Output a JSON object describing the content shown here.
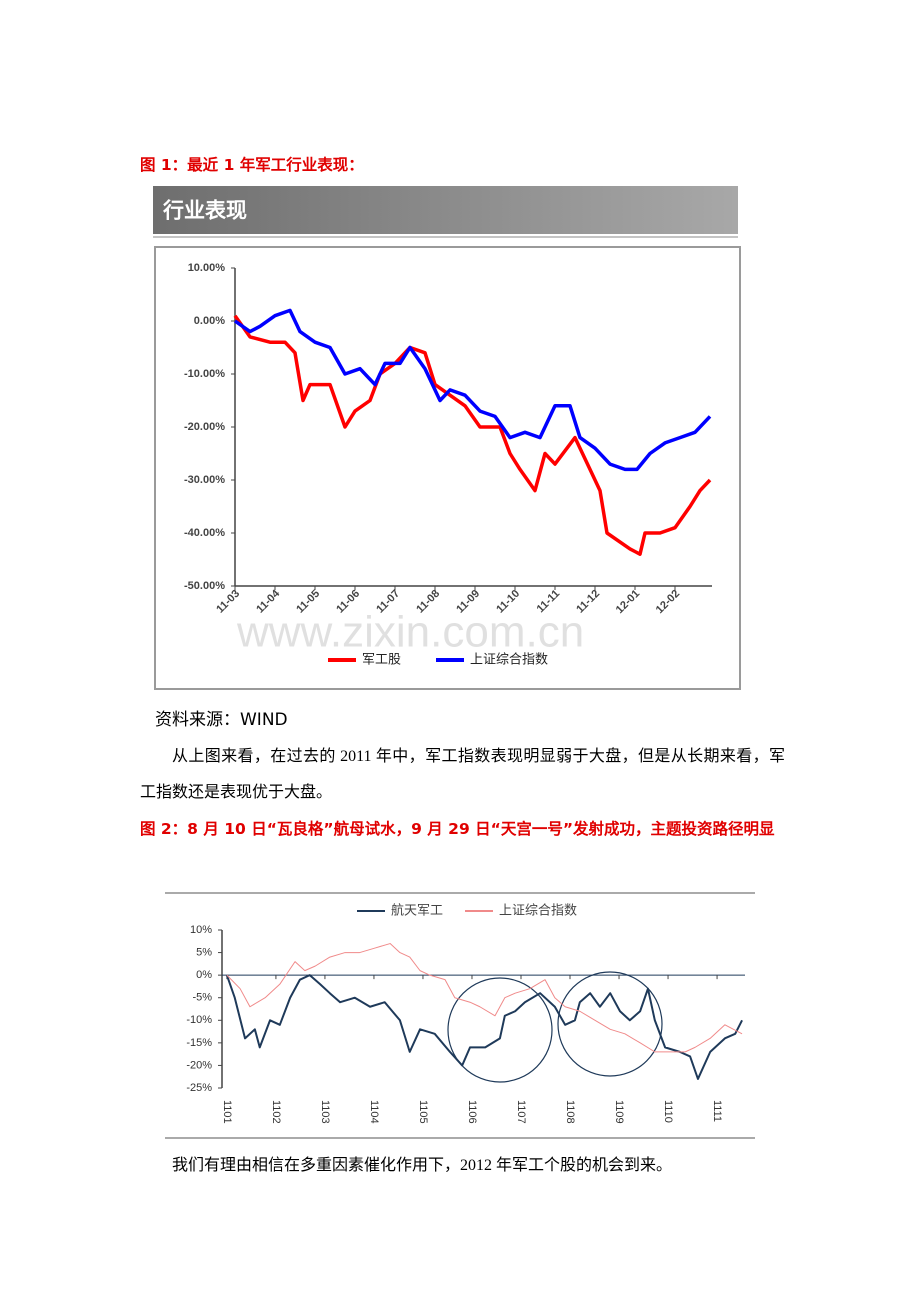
{
  "figure1_caption": "图 1：最近 1 年军工行业表现：",
  "source": "资料来源：WIND",
  "paragraph1": "从上图来看，在过去的 2011 年中，军工指数表现明显弱于大盘，但是从长期来看，军工指数还是表现优于大盘。",
  "figure2_caption": "图 2：8 月 10 日“瓦良格”航母试水，9 月 29 日“天宫一号”发射成功，主题投资路径明显",
  "paragraph2": "我们有理由相信在多重因素催化作用下，2012 年军工个股的机会到来。",
  "watermark": "www.zixin.com.cn",
  "chart_data": [
    {
      "type": "line",
      "title": "行业表现",
      "xlim": [
        0,
        12
      ],
      "xticks": [
        {
          "value": 0,
          "label": "11-03"
        },
        {
          "value": 1,
          "label": "11-04"
        },
        {
          "value": 2,
          "label": "11-05"
        },
        {
          "value": 3,
          "label": "11-06"
        },
        {
          "value": 4,
          "label": "11-07"
        },
        {
          "value": 5,
          "label": "11-08"
        },
        {
          "value": 6,
          "label": "11-09"
        },
        {
          "value": 7,
          "label": "11-10"
        },
        {
          "value": 8,
          "label": "11-11"
        },
        {
          "value": 9,
          "label": "11-12"
        },
        {
          "value": 10,
          "label": "12-01"
        },
        {
          "value": 11,
          "label": "12-02"
        }
      ],
      "ylim": [
        -50,
        10
      ],
      "yticks": [
        {
          "value": 10,
          "label": "10.00%"
        },
        {
          "value": 0,
          "label": "0.00%"
        },
        {
          "value": -10,
          "label": "-10.00%"
        },
        {
          "value": -20,
          "label": "-20.00%"
        },
        {
          "value": -30,
          "label": "-30.00%"
        },
        {
          "value": -40,
          "label": "-40.00%"
        },
        {
          "value": -50,
          "label": "-50.00%"
        }
      ],
      "series": [
        {
          "name": "军工股",
          "color": "#ff0000",
          "x": [
            0,
            0.375,
            0.875,
            1.25,
            1.5,
            1.7,
            1.875,
            2.375,
            2.75,
            3,
            3.375,
            3.625,
            4,
            4.375,
            4.75,
            5,
            5.375,
            5.75,
            6.125,
            6.625,
            6.875,
            7.125,
            7.5,
            7.75,
            8,
            8.5,
            8.875,
            9.125,
            9.3,
            9.875,
            10.125,
            10.25,
            10.625,
            11,
            11.375,
            11.625,
            11.875
          ],
          "values": [
            1,
            -3,
            -4,
            -4,
            -6,
            -15,
            -12,
            -12,
            -20,
            -17,
            -15,
            -10,
            -8,
            -5,
            -6,
            -12,
            -14,
            -16,
            -20,
            -20,
            -25,
            -28,
            -32,
            -25,
            -27,
            -22,
            -28,
            -32,
            -40,
            -43,
            -44,
            -40,
            -40,
            -39,
            -35,
            -32,
            -30
          ]
        },
        {
          "name": "上证综合指数",
          "color": "#0000ff",
          "x": [
            0,
            0.375,
            0.625,
            1,
            1.375,
            1.625,
            2,
            2.375,
            2.75,
            3.125,
            3.5,
            3.75,
            4.125,
            4.375,
            4.75,
            5.125,
            5.375,
            5.75,
            6.125,
            6.5,
            6.875,
            7.25,
            7.625,
            8,
            8.375,
            8.625,
            9,
            9.375,
            9.75,
            10.05,
            10.375,
            10.75,
            11.125,
            11.5,
            11.875
          ],
          "values": [
            0,
            -2,
            -1,
            1,
            2,
            -2,
            -4,
            -5,
            -10,
            -9,
            -12,
            -8,
            -8,
            -5,
            -9,
            -15,
            -13,
            -14,
            -17,
            -18,
            -22,
            -21,
            -22,
            -16,
            -16,
            -22,
            -24,
            -27,
            -28,
            -28,
            -25,
            -23,
            -22,
            -21,
            -18
          ]
        }
      ]
    },
    {
      "type": "line",
      "xlim": [
        -0.1,
        10.57
      ],
      "xticks": [
        {
          "value": 0,
          "label": "1101"
        },
        {
          "value": 1,
          "label": "1102"
        },
        {
          "value": 2,
          "label": "1103"
        },
        {
          "value": 3,
          "label": "1104"
        },
        {
          "value": 4,
          "label": "1105"
        },
        {
          "value": 5,
          "label": "1106"
        },
        {
          "value": 6,
          "label": "1107"
        },
        {
          "value": 7,
          "label": "1108"
        },
        {
          "value": 8,
          "label": "1109"
        },
        {
          "value": 9,
          "label": "1110"
        },
        {
          "value": 10,
          "label": "1111"
        }
      ],
      "ylim": [
        -25,
        10
      ],
      "yticks": [
        {
          "value": 10,
          "label": "10%"
        },
        {
          "value": 5,
          "label": "5%"
        },
        {
          "value": 0,
          "label": "0%"
        },
        {
          "value": -5,
          "label": "-5%"
        },
        {
          "value": -10,
          "label": "-10%"
        },
        {
          "value": -15,
          "label": "-15%"
        },
        {
          "value": -20,
          "label": "-20%"
        },
        {
          "value": -25,
          "label": "-25%"
        }
      ],
      "series": [
        {
          "name": "航天军工",
          "color": "#1f3a5a",
          "x": [
            0,
            0.16,
            0.37,
            0.57,
            0.67,
            0.88,
            1.08,
            1.29,
            1.49,
            1.69,
            1.9,
            2.1,
            2.31,
            2.61,
            2.92,
            3.22,
            3.53,
            3.73,
            3.94,
            4.24,
            4.55,
            4.8,
            4.96,
            5.27,
            5.57,
            5.67,
            5.88,
            6.08,
            6.39,
            6.69,
            6.9,
            7.1,
            7.2,
            7.41,
            7.61,
            7.82,
            8.02,
            8.22,
            8.43,
            8.59,
            8.73,
            8.94,
            9.24,
            9.45,
            9.61,
            9.86,
            10.16,
            10.37,
            10.51
          ],
          "values": [
            0,
            -5,
            -14,
            -12,
            -16,
            -10,
            -11,
            -5,
            -1,
            0,
            -2,
            -4,
            -6,
            -5,
            -7,
            -6,
            -10,
            -17,
            -12,
            -13,
            -17,
            -20,
            -16,
            -16,
            -14,
            -9,
            -8,
            -6,
            -4,
            -7,
            -11,
            -10,
            -6,
            -4,
            -7,
            -4,
            -8,
            -10,
            -8,
            -3,
            -10,
            -16,
            -17,
            -18,
            -23,
            -17,
            -14,
            -13,
            -10
          ]
        },
        {
          "name": "上证综合指数",
          "color": "#f08a8a",
          "x": [
            0,
            0.27,
            0.47,
            0.78,
            1.08,
            1.39,
            1.59,
            1.8,
            2.1,
            2.41,
            2.71,
            3.02,
            3.33,
            3.53,
            3.73,
            3.94,
            4.14,
            4.45,
            4.65,
            4.96,
            5.16,
            5.47,
            5.67,
            5.88,
            6.18,
            6.49,
            6.69,
            6.9,
            7.2,
            7.51,
            7.82,
            8.12,
            8.43,
            8.73,
            9.04,
            9.35,
            9.55,
            9.86,
            10.16,
            10.51
          ],
          "values": [
            0,
            -3,
            -7,
            -5,
            -2,
            3,
            1,
            2,
            4,
            5,
            5,
            6,
            7,
            5,
            4,
            1,
            0,
            -1,
            -5,
            -6,
            -7,
            -9,
            -5,
            -4,
            -3,
            -1,
            -5,
            -7,
            -8,
            -10,
            -12,
            -13,
            -15,
            -17,
            -17,
            -17,
            -16,
            -14,
            -11,
            -13
          ]
        }
      ]
    }
  ]
}
